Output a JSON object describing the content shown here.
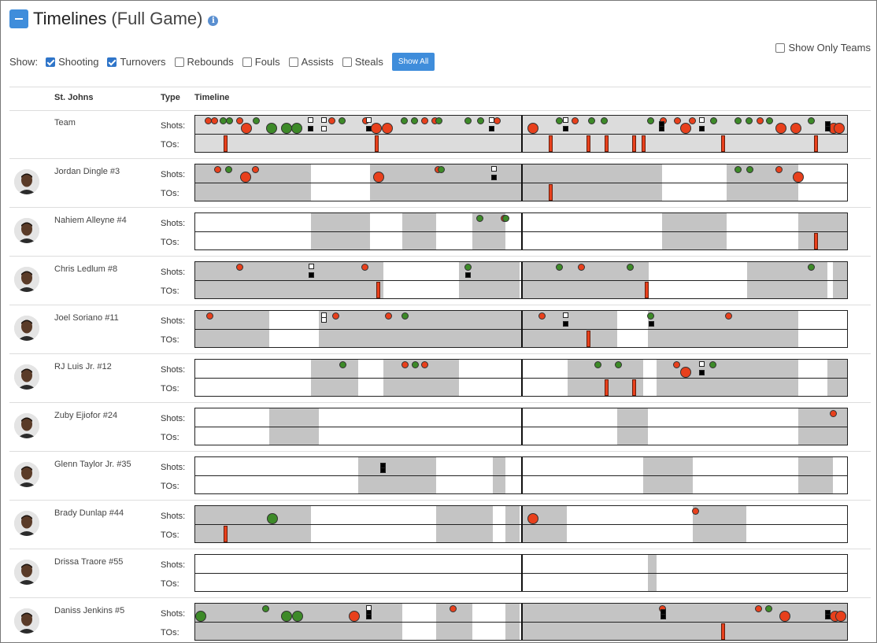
{
  "title": {
    "main": "Timelines",
    "sub": "(Full Game)",
    "info_icon": "info-icon",
    "collapse_icon": "minus-square-icon"
  },
  "show_only_teams": {
    "label": "Show Only Teams",
    "checked": false
  },
  "filters": {
    "label": "Show:",
    "items": [
      {
        "label": "Shooting",
        "checked": true
      },
      {
        "label": "Turnovers",
        "checked": true
      },
      {
        "label": "Rebounds",
        "checked": false
      },
      {
        "label": "Fouls",
        "checked": false
      },
      {
        "label": "Assists",
        "checked": false
      },
      {
        "label": "Steals",
        "checked": false
      }
    ],
    "show_all_label": "Show All"
  },
  "headers": {
    "team": "St. Johns",
    "type": "Type",
    "timeline": "Timeline"
  },
  "type_labels": {
    "shots": "Shots:",
    "tos": "TOs:"
  },
  "colors": {
    "make": "#3d8a28",
    "miss": "#e8401c",
    "on_court": "#c4c4c4",
    "accent": "#3f8ddb"
  },
  "rows": [
    {
      "name": "Team",
      "team": true,
      "avatar": false,
      "segments": [
        [
          0,
          1
        ]
      ],
      "shots": [
        [
          0.02,
          "m",
          1
        ],
        [
          0.03,
          "m",
          1
        ],
        [
          0.043,
          "g",
          1
        ],
        [
          0.053,
          "g",
          1
        ],
        [
          0.068,
          "m",
          1
        ],
        [
          0.078,
          "m",
          2
        ],
        [
          0.093,
          "g",
          1
        ],
        [
          0.117,
          "g",
          2
        ],
        [
          0.14,
          "g",
          2
        ],
        [
          0.156,
          "g",
          2
        ],
        [
          0.21,
          "m",
          1
        ],
        [
          0.225,
          "g",
          1
        ],
        [
          0.262,
          "m",
          1
        ],
        [
          0.278,
          "m",
          2
        ],
        [
          0.295,
          "m",
          2
        ],
        [
          0.321,
          "g",
          1
        ],
        [
          0.336,
          "g",
          1
        ],
        [
          0.352,
          "m",
          1
        ],
        [
          0.368,
          "m",
          1
        ],
        [
          0.374,
          "g",
          1
        ],
        [
          0.418,
          "g",
          1
        ],
        [
          0.438,
          "g",
          1
        ],
        [
          0.463,
          "m",
          1
        ],
        [
          0.518,
          "m",
          2
        ],
        [
          0.559,
          "g",
          1
        ],
        [
          0.583,
          "m",
          1
        ],
        [
          0.608,
          "g",
          1
        ],
        [
          0.628,
          "g",
          1
        ],
        [
          0.699,
          "g",
          1
        ],
        [
          0.718,
          "m",
          1
        ],
        [
          0.74,
          "m",
          1
        ],
        [
          0.753,
          "m",
          2
        ],
        [
          0.763,
          "m",
          1
        ],
        [
          0.795,
          "g",
          1
        ],
        [
          0.833,
          "g",
          1
        ],
        [
          0.85,
          "g",
          1
        ],
        [
          0.866,
          "m",
          1
        ],
        [
          0.881,
          "g",
          1
        ],
        [
          0.899,
          "m",
          2
        ],
        [
          0.922,
          "m",
          2
        ],
        [
          0.945,
          "g",
          1
        ],
        [
          0.98,
          "m",
          2
        ],
        [
          0.988,
          "m",
          2
        ]
      ],
      "fts": [
        [
          0.176,
          "x",
          0.12
        ],
        [
          0.176,
          "o",
          0.6
        ],
        [
          0.197,
          "x",
          0.12
        ],
        [
          0.197,
          "x",
          0.6
        ],
        [
          0.266,
          "x",
          0.12
        ],
        [
          0.266,
          "o",
          0.6
        ],
        [
          0.568,
          "x",
          0.12
        ],
        [
          0.568,
          "o",
          0.6
        ],
        [
          0.454,
          "x",
          0.12
        ],
        [
          0.454,
          "o",
          0.6
        ],
        [
          0.715,
          "o",
          0.35
        ],
        [
          0.715,
          "o",
          0.6
        ],
        [
          0.777,
          "x",
          0.12
        ],
        [
          0.777,
          "o",
          0.6
        ],
        [
          0.97,
          "o",
          0.35
        ],
        [
          0.97,
          "o",
          0.6
        ]
      ],
      "tos": [
        0.047,
        0.279,
        0.546,
        0.604,
        0.632,
        0.674,
        0.688,
        0.81,
        0.953
      ]
    },
    {
      "name": "Jordan Dingle #3",
      "segments": [
        [
          0,
          0.177
        ],
        [
          0.268,
          0.716
        ],
        [
          0.815,
          0.925
        ]
      ],
      "shots": [
        [
          0.034,
          "m",
          1
        ],
        [
          0.051,
          "g",
          1
        ],
        [
          0.077,
          "m",
          2
        ],
        [
          0.092,
          "m",
          1
        ],
        [
          0.281,
          "m",
          2
        ],
        [
          0.373,
          "m",
          1
        ],
        [
          0.377,
          "g",
          1
        ],
        [
          0.833,
          "g",
          1
        ],
        [
          0.851,
          "g",
          1
        ],
        [
          0.895,
          "m",
          1
        ],
        [
          0.925,
          "m",
          2
        ]
      ],
      "fts": [
        [
          0.458,
          "x",
          0.12
        ],
        [
          0.458,
          "o",
          0.6
        ]
      ],
      "tos": [
        0.546
      ]
    },
    {
      "name": "Nahiem Alleyne #4",
      "segments": [
        [
          0.177,
          0.268
        ],
        [
          0.318,
          0.369
        ],
        [
          0.425,
          0.476
        ],
        [
          0.716,
          0.815
        ],
        [
          0.925,
          1
        ]
      ],
      "shots": [
        [
          0.437,
          "g",
          1
        ],
        [
          0.474,
          "m",
          1
        ],
        [
          0.477,
          "g",
          1
        ]
      ],
      "fts": [],
      "tos": [
        0.953
      ]
    },
    {
      "name": "Chris Ledlum #8",
      "segments": [
        [
          0,
          0.289
        ],
        [
          0.404,
          0.498
        ],
        [
          0.5,
          0.696
        ],
        [
          0.847,
          0.97
        ],
        [
          0.978,
          1
        ]
      ],
      "shots": [
        [
          0.068,
          "m",
          1
        ],
        [
          0.26,
          "m",
          1
        ],
        [
          0.418,
          "g",
          1
        ],
        [
          0.559,
          "g",
          1
        ],
        [
          0.592,
          "m",
          1
        ],
        [
          0.667,
          "g",
          1
        ],
        [
          0.945,
          "g",
          1
        ]
      ],
      "fts": [
        [
          0.177,
          "x",
          0.12
        ],
        [
          0.177,
          "o",
          0.6
        ],
        [
          0.418,
          "o",
          0.6
        ]
      ],
      "tos": [
        0.282,
        0.693
      ]
    },
    {
      "name": "Joel Soriano #11",
      "segments": [
        [
          0,
          0.113
        ],
        [
          0.19,
          0.5
        ],
        [
          0.5,
          0.647
        ],
        [
          0.695,
          0.925
        ]
      ],
      "shots": [
        [
          0.022,
          "m",
          1
        ],
        [
          0.216,
          "m",
          1
        ],
        [
          0.297,
          "m",
          1
        ],
        [
          0.322,
          "g",
          1
        ],
        [
          0.532,
          "m",
          1
        ],
        [
          0.699,
          "g",
          1
        ],
        [
          0.818,
          "m",
          1
        ]
      ],
      "fts": [
        [
          0.197,
          "x",
          0.12
        ],
        [
          0.197,
          "x",
          0.38
        ],
        [
          0.568,
          "x",
          0.12
        ],
        [
          0.568,
          "o",
          0.6
        ],
        [
          0.699,
          "o",
          0.6
        ]
      ],
      "tos": [
        0.604
      ]
    },
    {
      "name": "RJ Luis Jr. #12",
      "segments": [
        [
          0.177,
          0.25
        ],
        [
          0.289,
          0.404
        ],
        [
          0.571,
          0.687
        ],
        [
          0.708,
          0.925
        ],
        [
          0.97,
          1
        ]
      ],
      "shots": [
        [
          0.226,
          "g",
          1
        ],
        [
          0.322,
          "m",
          1
        ],
        [
          0.337,
          "g",
          1
        ],
        [
          0.352,
          "m",
          1
        ],
        [
          0.618,
          "g",
          1
        ],
        [
          0.649,
          "g",
          1
        ],
        [
          0.739,
          "m",
          1
        ],
        [
          0.753,
          "m",
          2
        ],
        [
          0.794,
          "g",
          1
        ]
      ],
      "fts": [
        [
          0.777,
          "x",
          0.12
        ],
        [
          0.777,
          "o",
          0.6
        ]
      ],
      "tos": [
        0.632,
        0.674
      ]
    },
    {
      "name": "Zuby Ejiofor #24",
      "segments": [
        [
          0.113,
          0.19
        ],
        [
          0.647,
          0.695
        ],
        [
          0.925,
          1
        ]
      ],
      "shots": [
        [
          0.979,
          "m",
          1
        ]
      ],
      "fts": [],
      "tos": []
    },
    {
      "name": "Glenn Taylor Jr. #35",
      "segments": [
        [
          0.25,
          0.369
        ],
        [
          0.456,
          0.476
        ],
        [
          0.687,
          0.763
        ],
        [
          0.925,
          0.978
        ]
      ],
      "shots": [],
      "fts": [
        [
          0.288,
          "o",
          0.35
        ],
        [
          0.288,
          "o",
          0.6
        ]
      ],
      "tos": []
    },
    {
      "name": "Brady Dunlap #44",
      "segments": [
        [
          0,
          0.177
        ],
        [
          0.369,
          0.456
        ],
        [
          0.476,
          0.498
        ],
        [
          0.5,
          0.57
        ],
        [
          0.763,
          0.845
        ]
      ],
      "shots": [
        [
          0.118,
          "g",
          2
        ],
        [
          0.518,
          "m",
          2
        ],
        [
          0.767,
          "m",
          1
        ]
      ],
      "fts": [],
      "tos": [
        0.047
      ]
    },
    {
      "name": "Drissa Traore #55",
      "segments": [
        [
          0.695,
          0.708
        ]
      ],
      "shots": [],
      "fts": [],
      "tos": []
    },
    {
      "name": "Daniss Jenkins #5",
      "segments": [
        [
          0,
          0.318
        ],
        [
          0.369,
          0.425
        ],
        [
          0.476,
          0.498
        ],
        [
          0.5,
          1
        ]
      ],
      "shots": [
        [
          0.008,
          "g",
          2
        ],
        [
          0.108,
          "g",
          1
        ],
        [
          0.14,
          "g",
          2
        ],
        [
          0.157,
          "g",
          2
        ],
        [
          0.244,
          "m",
          2
        ],
        [
          0.395,
          "m",
          1
        ],
        [
          0.717,
          "m",
          1
        ],
        [
          0.864,
          "m",
          1
        ],
        [
          0.88,
          "g",
          1
        ],
        [
          0.905,
          "m",
          2
        ],
        [
          0.982,
          "m",
          2
        ],
        [
          0.99,
          "m",
          2
        ]
      ],
      "fts": [
        [
          0.266,
          "x",
          0.12
        ],
        [
          0.266,
          "o",
          0.38
        ],
        [
          0.266,
          "o",
          0.6
        ],
        [
          0.717,
          "o",
          0.35
        ],
        [
          0.717,
          "o",
          0.6
        ],
        [
          0.97,
          "o",
          0.38
        ],
        [
          0.97,
          "o",
          0.6
        ]
      ],
      "tos": [
        0.81
      ]
    }
  ]
}
